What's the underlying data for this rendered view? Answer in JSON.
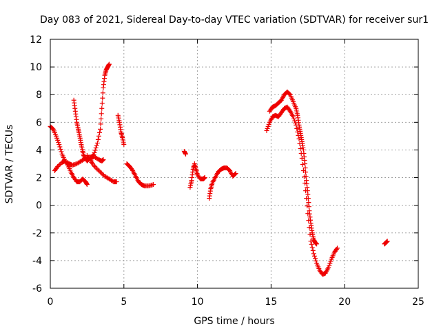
{
  "chart_data": {
    "type": "scatter",
    "title": "Day 083 of 2021, Sidereal Day-to-day VTEC variation (SDTVAR) for receiver sur1",
    "xlabel": "GPS time / hours",
    "ylabel": "SDTVAR / TECUs",
    "xlim": [
      0,
      25
    ],
    "ylim": [
      -6,
      12
    ],
    "xticks": [
      0,
      5,
      10,
      15,
      20,
      25
    ],
    "yticks": [
      -6,
      -4,
      -2,
      0,
      2,
      4,
      6,
      8,
      10,
      12
    ],
    "xtick_labels": [
      "0",
      "5",
      "10",
      "15",
      "20",
      "25"
    ],
    "ytick_labels": [
      "-6",
      "-4",
      "-2",
      "0",
      "2",
      "4",
      "6",
      "8",
      "10",
      "12"
    ],
    "grid": true,
    "marker": "plus",
    "color": "#ee0000",
    "series": [
      {
        "name": "s1",
        "x": [
          0.0,
          0.2,
          0.4,
          0.6,
          0.8,
          1.0,
          1.2,
          1.4,
          1.6,
          1.8,
          2.0,
          2.2,
          2.4,
          2.5
        ],
        "y": [
          5.7,
          5.5,
          5.0,
          4.4,
          3.7,
          3.2,
          2.9,
          2.4,
          2.0,
          1.7,
          1.7,
          1.9,
          1.7,
          1.5
        ]
      },
      {
        "name": "s2",
        "x": [
          0.3,
          0.5,
          0.8,
          1.0,
          1.3,
          1.5,
          1.8,
          2.1,
          2.4,
          2.7,
          3.0,
          3.3,
          3.5,
          3.6
        ],
        "y": [
          2.5,
          2.8,
          3.1,
          3.2,
          3.0,
          2.9,
          3.0,
          3.2,
          3.4,
          3.5,
          3.5,
          3.3,
          3.2,
          3.3
        ]
      },
      {
        "name": "s3",
        "x": [
          1.6,
          1.7,
          1.8,
          1.9,
          2.0,
          2.1,
          2.2,
          2.3,
          2.5,
          2.7,
          2.9
        ],
        "y": [
          7.6,
          6.8,
          6.0,
          5.5,
          5.0,
          4.4,
          3.9,
          3.5,
          3.2,
          3.4,
          3.6
        ]
      },
      {
        "name": "s4",
        "x": [
          2.8,
          3.0,
          3.2,
          3.4,
          3.5,
          3.6,
          3.7,
          3.8,
          3.9,
          4.0
        ],
        "y": [
          3.2,
          3.8,
          4.5,
          5.5,
          7.0,
          8.5,
          9.4,
          9.8,
          10.0,
          10.2
        ]
      },
      {
        "name": "s5",
        "x": [
          2.5,
          2.8,
          3.1,
          3.4,
          3.7,
          4.0,
          4.3,
          4.5
        ],
        "y": [
          3.6,
          3.1,
          2.7,
          2.4,
          2.1,
          1.9,
          1.7,
          1.7
        ]
      },
      {
        "name": "s6",
        "x": [
          4.6,
          4.7,
          4.8,
          4.9,
          5.0
        ],
        "y": [
          6.5,
          6.0,
          5.3,
          4.9,
          4.4
        ]
      },
      {
        "name": "s7",
        "x": [
          5.2,
          5.4,
          5.6,
          5.8,
          6.0,
          6.2,
          6.4,
          6.7,
          7.0
        ],
        "y": [
          3.0,
          2.8,
          2.5,
          2.1,
          1.7,
          1.5,
          1.4,
          1.4,
          1.5
        ]
      },
      {
        "name": "s8",
        "x": [
          9.1,
          9.2
        ],
        "y": [
          3.9,
          3.7
        ]
      },
      {
        "name": "s9",
        "x": [
          9.5,
          9.6,
          9.7,
          9.8,
          9.9,
          10.0,
          10.2,
          10.4,
          10.5
        ],
        "y": [
          1.3,
          1.8,
          2.6,
          3.0,
          2.6,
          2.2,
          1.9,
          1.9,
          2.0
        ]
      },
      {
        "name": "s10",
        "x": [
          10.8,
          10.9,
          11.0,
          11.2,
          11.4,
          11.6,
          11.8,
          12.0,
          12.2,
          12.4,
          12.6
        ],
        "y": [
          0.5,
          1.2,
          1.6,
          2.0,
          2.4,
          2.6,
          2.7,
          2.7,
          2.5,
          2.1,
          2.3
        ]
      },
      {
        "name": "s11",
        "x": [
          14.7,
          14.9,
          15.1,
          15.3,
          15.5,
          15.7,
          15.9,
          16.1,
          16.3,
          16.5,
          16.7,
          16.9,
          17.1,
          17.3,
          17.5,
          17.7,
          17.9,
          18.1,
          18.3,
          18.5,
          18.7,
          18.9,
          19.1,
          19.3,
          19.5
        ],
        "y": [
          5.4,
          6.0,
          6.4,
          6.5,
          6.4,
          6.7,
          7.0,
          7.1,
          6.8,
          6.4,
          5.8,
          4.8,
          3.4,
          1.6,
          -0.6,
          -2.6,
          -3.5,
          -4.2,
          -4.7,
          -5.0,
          -4.9,
          -4.5,
          -3.9,
          -3.4,
          -3.1
        ]
      },
      {
        "name": "s12",
        "x": [
          14.9,
          15.1,
          15.3,
          15.5,
          15.7,
          15.9,
          16.1,
          16.3,
          16.5,
          16.7,
          16.8,
          16.9,
          17.0,
          17.1,
          17.2,
          17.3,
          17.4,
          17.5,
          17.6,
          17.7,
          17.8,
          17.9,
          18.0,
          18.1
        ],
        "y": [
          6.8,
          7.1,
          7.2,
          7.4,
          7.6,
          8.0,
          8.2,
          8.0,
          7.5,
          7.0,
          6.5,
          5.8,
          5.2,
          4.6,
          4.0,
          3.0,
          1.8,
          0.8,
          -0.4,
          -1.3,
          -2.0,
          -2.5,
          -2.7,
          -2.8
        ]
      },
      {
        "name": "s13",
        "x": [
          22.7,
          22.8,
          22.9
        ],
        "y": [
          -2.8,
          -2.7,
          -2.6
        ]
      }
    ]
  }
}
